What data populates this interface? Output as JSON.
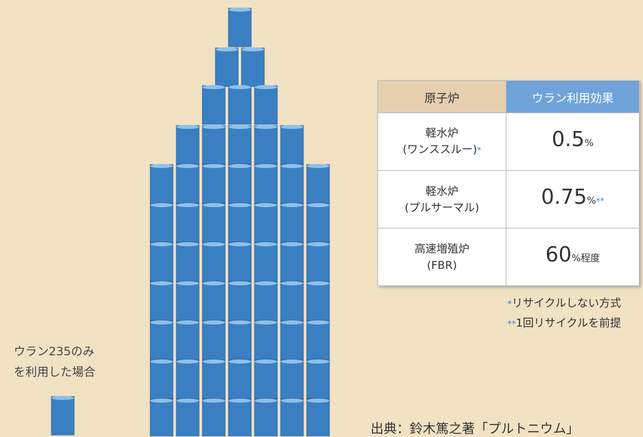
{
  "label": [
    "ウラン235のみ",
    "を利用した場合"
  ],
  "table": {
    "header": [
      "原子炉",
      "ウラン利用効果"
    ],
    "rows": [
      {
        "reactor": [
          "軽水炉",
          "(ワンススルー)"
        ],
        "note": "*",
        "value": "0.5",
        "unit": "%",
        "value_note": ""
      },
      {
        "reactor": [
          "軽水炉",
          "(プルサーマル)"
        ],
        "note": "",
        "value": "0.75",
        "unit": "%",
        "value_note": "**"
      },
      {
        "reactor": [
          "高速増殖炉",
          "(FBR)"
        ],
        "note": "",
        "value": "60",
        "unit": "%程度",
        "value_note": ""
      }
    ]
  },
  "footnotes": [
    {
      "mark": "*",
      "text": "リサイクルしない方式"
    },
    {
      "mark": "**",
      "text": "1回リサイクルを前提"
    }
  ],
  "source": "出典：鈴木篤之著「プルトニウム」"
}
